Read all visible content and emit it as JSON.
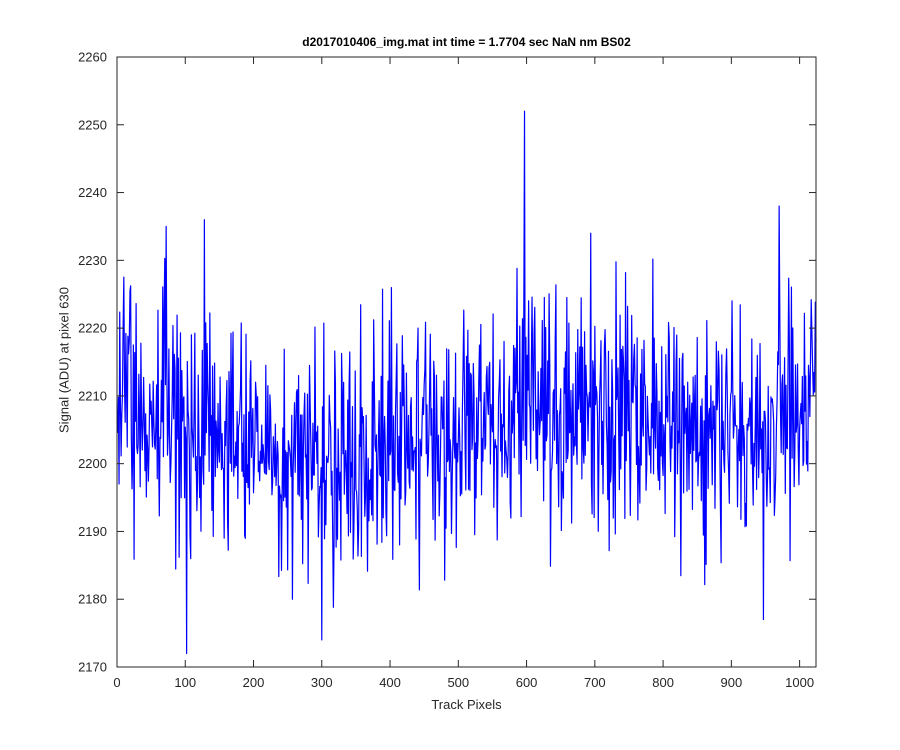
{
  "chart_data": {
    "type": "line",
    "title": "d2017010406_img.mat int time = 1.7704 sec  NaN nm BS02",
    "xlabel": "Track Pixels",
    "ylabel": "Signal (ADU) at pixel 630",
    "xlim": [
      0,
      1024
    ],
    "ylim": [
      2170,
      2260
    ],
    "xticks": [
      "0",
      "100",
      "200",
      "300",
      "400",
      "500",
      "600",
      "700",
      "800",
      "900",
      "1000"
    ],
    "yticks": [
      "2170",
      "2180",
      "2190",
      "2200",
      "2210",
      "2220",
      "2230",
      "2240",
      "2250",
      "2260"
    ],
    "grid": false,
    "line_color": "#0000ff",
    "series": [
      {
        "x": [
          1,
          52,
          103,
          154,
          205,
          256,
          307,
          358,
          409,
          460,
          511,
          562,
          597,
          613,
          664,
          715,
          766,
          817,
          868,
          919,
          970,
          1021
        ],
        "y": [
          2213,
          2209,
          2204,
          2203,
          2203,
          2201,
          2200,
          2201,
          2202,
          2204,
          2205,
          2207,
          2210,
          2208,
          2207,
          2207,
          2207,
          2206,
          2206,
          2205,
          2206,
          2210
        ]
      }
    ],
    "notable_points": [
      {
        "x": 72,
        "y": 2235
      },
      {
        "x": 102,
        "y": 2172
      },
      {
        "x": 128,
        "y": 2236
      },
      {
        "x": 300,
        "y": 2174
      },
      {
        "x": 597,
        "y": 2252
      },
      {
        "x": 970,
        "y": 2238
      }
    ]
  }
}
